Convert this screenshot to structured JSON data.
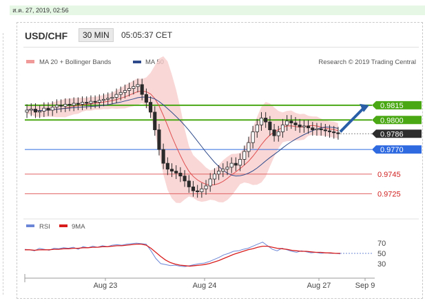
{
  "timestamp": "ส.ค. 27, 2019, 02:56",
  "header": {
    "pair": "USD/CHF",
    "timeframe": "30 MIN",
    "clock": "05:05:37 CET"
  },
  "legend": {
    "bb": "MA 20 + Bollinger Bands",
    "ma50": "MA 50",
    "credit": "Research © 2019 Trading Central"
  },
  "rsi_legend": {
    "rsi": "RSI",
    "ma9": "9MA"
  },
  "colors": {
    "candle": "#2a2a2a",
    "bollinger": "#f7c9c9",
    "ma20": "#e05050",
    "ma50": "#2e4a8a",
    "green": "#4aa814",
    "blue": "#2f6ae0",
    "dark": "#2d2d2d",
    "red_level": "#e06060",
    "rsi": "#6b86d6",
    "rsi_ma": "#d81b1b",
    "arrow": "#2a5fa8"
  },
  "chart_data": [
    {
      "type": "candlestick",
      "title": "USD/CHF 30 MIN",
      "x_ticks": [
        "Aug 23",
        "Aug 24",
        "Aug 27",
        "Sep 9"
      ],
      "ylim": [
        0.9705,
        0.9845
      ],
      "price_labels": [
        {
          "value": 0.9815,
          "label": "0.9815",
          "style": "green"
        },
        {
          "value": 0.98,
          "label": "0.9800",
          "style": "green"
        },
        {
          "value": 0.9786,
          "label": "0.9786",
          "style": "dark"
        },
        {
          "value": 0.977,
          "label": "0.9770",
          "style": "blue"
        },
        {
          "value": 0.9745,
          "label": "0.9745",
          "style": "red"
        },
        {
          "value": 0.9725,
          "label": "0.9725",
          "style": "red"
        }
      ],
      "close_series": [
        0.981,
        0.9811,
        0.9808,
        0.9809,
        0.9812,
        0.981,
        0.9813,
        0.9815,
        0.9814,
        0.9816,
        0.9815,
        0.9817,
        0.9816,
        0.9818,
        0.9817,
        0.9819,
        0.9818,
        0.982,
        0.9821,
        0.9822,
        0.9823,
        0.9826,
        0.9828,
        0.983,
        0.9832,
        0.9834,
        0.9836,
        0.9826,
        0.9818,
        0.9808,
        0.979,
        0.977,
        0.9756,
        0.975,
        0.9748,
        0.9746,
        0.9743,
        0.9738,
        0.9732,
        0.9728,
        0.9727,
        0.973,
        0.9733,
        0.974,
        0.9745,
        0.9748,
        0.975,
        0.9752,
        0.9756,
        0.9754,
        0.976,
        0.9768,
        0.9777,
        0.9788,
        0.9795,
        0.9802,
        0.9798,
        0.979,
        0.9784,
        0.9788,
        0.9795,
        0.9799,
        0.9797,
        0.9795,
        0.9793,
        0.9794,
        0.9792,
        0.979,
        0.9791,
        0.979,
        0.9789,
        0.9788,
        0.9787,
        0.9786
      ],
      "ma50_endpoints_note": "",
      "projection": {
        "from": 0.9788,
        "to": 0.9815
      }
    },
    {
      "type": "line",
      "title": "RSI",
      "series": [
        {
          "name": "RSI",
          "values": [
            58,
            57,
            55,
            60,
            58,
            56,
            60,
            59,
            61,
            60,
            62,
            58,
            63,
            61,
            64,
            62,
            65,
            63,
            66,
            67,
            66,
            68,
            69,
            70,
            69,
            68,
            55,
            40,
            30,
            28,
            26,
            27,
            25,
            24,
            26,
            28,
            30,
            31,
            34,
            38,
            42,
            47,
            50,
            54,
            55,
            58,
            60,
            64,
            68,
            72,
            65,
            58,
            55,
            60,
            57,
            54,
            52,
            55,
            53,
            51,
            52,
            50,
            51,
            50,
            50,
            49
          ]
        },
        {
          "name": "9MA",
          "values": [
            57,
            57,
            56,
            57,
            57,
            57,
            58,
            58,
            59,
            59,
            60,
            60,
            61,
            61,
            62,
            62,
            63,
            63,
            64,
            65,
            65,
            66,
            67,
            68,
            68,
            66,
            60,
            52,
            44,
            37,
            32,
            29,
            27,
            26,
            25,
            26,
            27,
            28,
            30,
            33,
            36,
            40,
            44,
            48,
            51,
            54,
            57,
            59,
            62,
            64,
            64,
            62,
            60,
            59,
            58,
            56,
            55,
            54,
            54,
            53,
            52,
            52,
            51,
            51,
            50,
            50
          ]
        }
      ],
      "levels": [
        70,
        50,
        30
      ],
      "ylim": [
        15,
        85
      ]
    }
  ]
}
